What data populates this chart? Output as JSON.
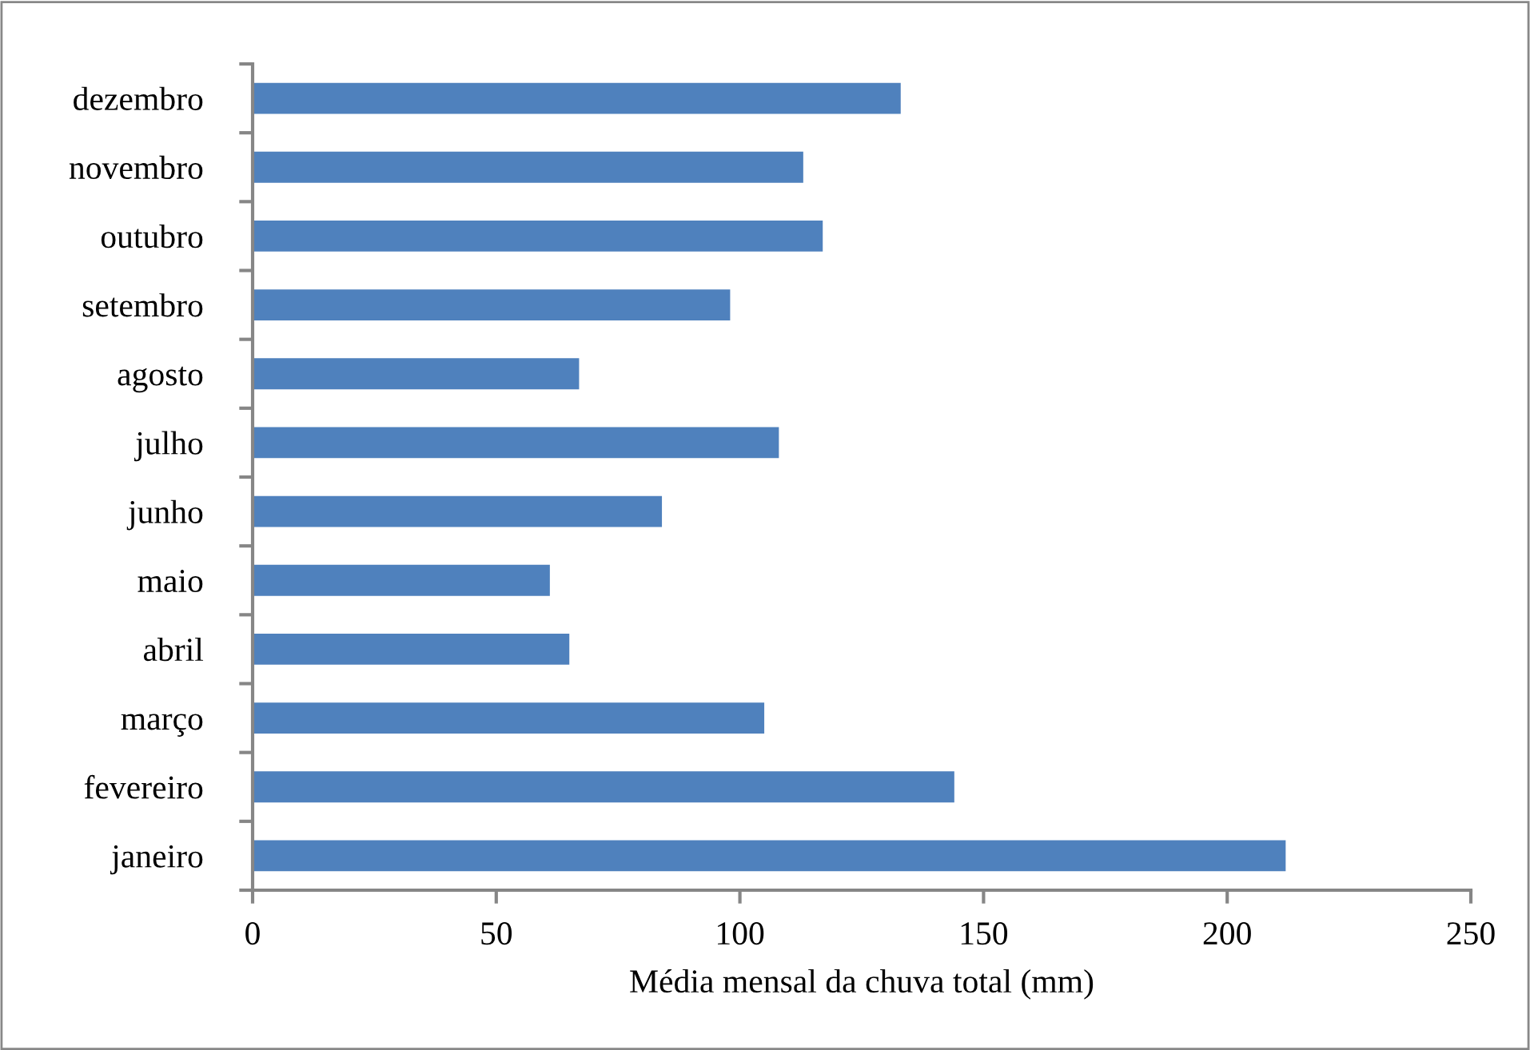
{
  "chart_data": {
    "type": "bar",
    "orientation": "horizontal",
    "xlabel": "Média mensal da chuva total (mm)",
    "categories": [
      "dezembro",
      "novembro",
      "outubro",
      "setembro",
      "agosto",
      "julho",
      "junho",
      "maio",
      "abril",
      "março",
      "fevereiro",
      "janeiro"
    ],
    "values": [
      133,
      113,
      117,
      98,
      67,
      108,
      84,
      61,
      65,
      105,
      144,
      212
    ],
    "color": "#4f81bd",
    "xlim": [
      0,
      250
    ],
    "xticks": [
      0,
      50,
      100,
      150,
      200,
      250
    ],
    "grid": false,
    "legend": false
  }
}
